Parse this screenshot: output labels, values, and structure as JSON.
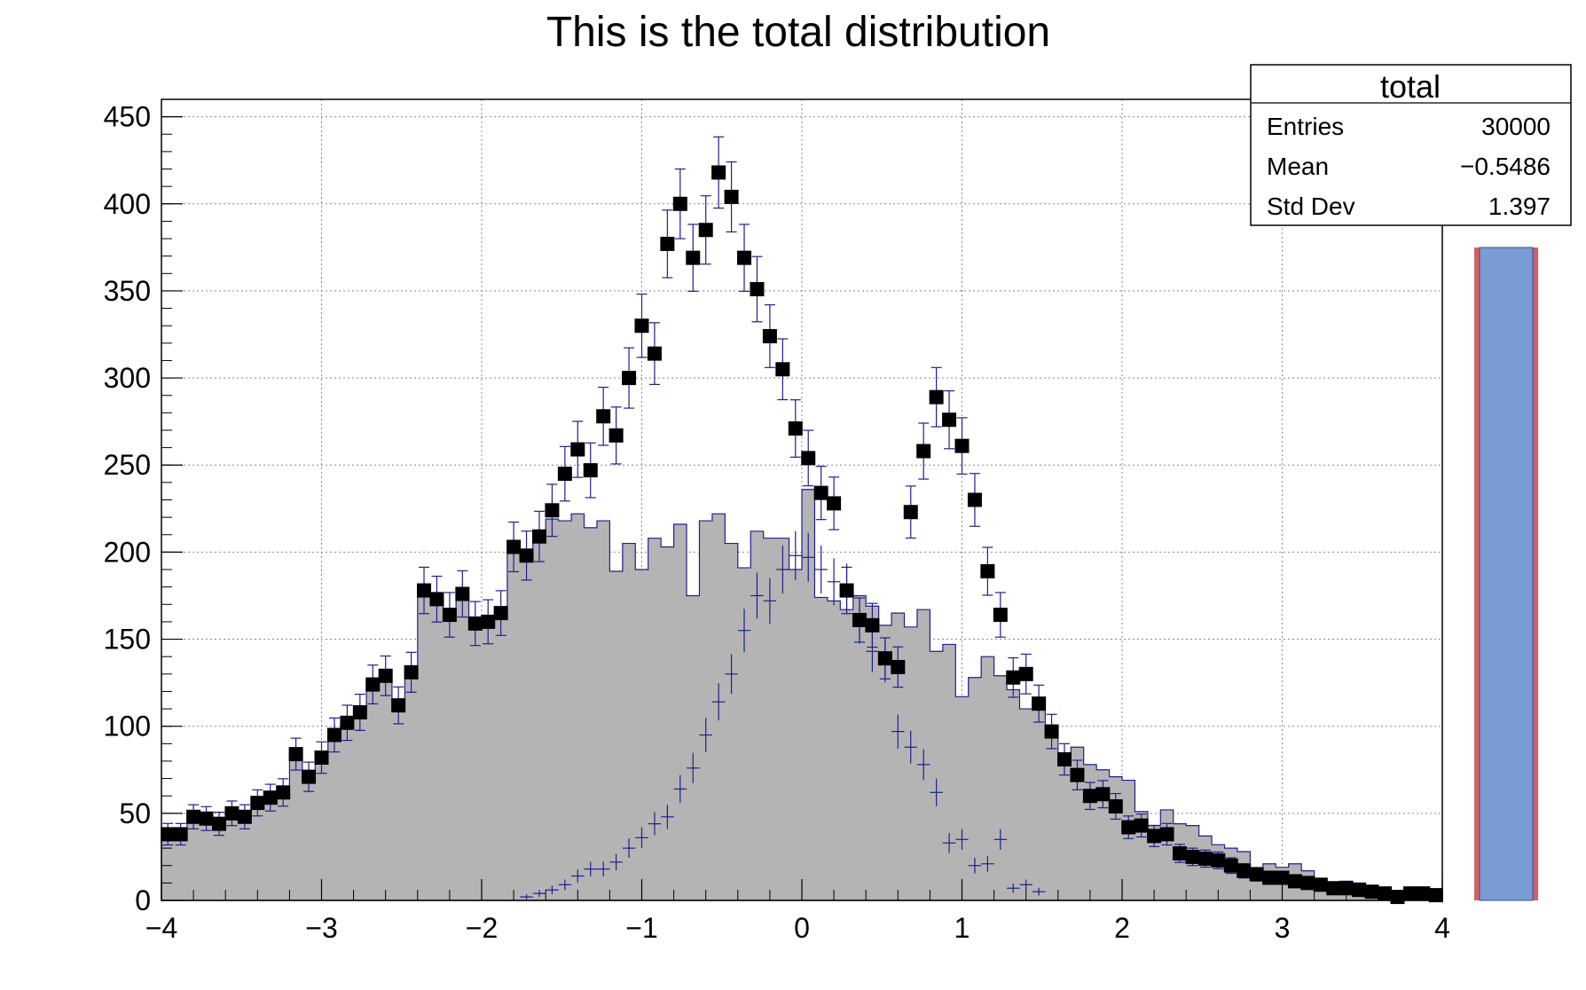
{
  "chart_data": {
    "type": "histogram",
    "title": "This is the total distribution",
    "xlim": [
      -4,
      4
    ],
    "ylim": [
      0,
      460
    ],
    "x_ticks": [
      "−4",
      "−3",
      "−2",
      "−1",
      "0",
      "1",
      "2",
      "3",
      "4"
    ],
    "y_ticks": [
      "0",
      "50",
      "100",
      "150",
      "200",
      "250",
      "300",
      "350",
      "400",
      "450"
    ],
    "grid": true,
    "bins": 100,
    "bin_range": [
      -4,
      4
    ],
    "colors": {
      "background_fill": "#b4b4b4",
      "line": "#1f1f8f",
      "markers": "#000000",
      "blue_box": "#7b9bd4",
      "red_border": "#d45f5f"
    },
    "series": [
      {
        "style": "filled-step",
        "values": [
          39,
          40,
          49,
          47,
          44,
          51,
          48,
          57,
          59,
          62,
          85,
          71,
          82,
          95,
          102,
          108,
          124,
          130,
          112,
          131,
          178,
          173,
          164,
          176,
          160,
          160,
          166,
          203,
          198,
          210,
          219,
          218,
          222,
          214,
          218,
          189,
          205,
          190,
          208,
          203,
          216,
          175,
          218,
          222,
          205,
          191,
          212,
          208,
          208,
          190,
          236,
          174,
          172,
          167,
          175,
          169,
          158,
          165,
          157,
          167,
          143,
          147,
          117,
          128,
          140,
          129,
          121,
          110,
          114,
          100,
          82,
          88,
          78,
          75,
          71,
          69,
          51,
          43,
          52,
          44,
          43,
          37,
          32,
          30,
          28,
          18,
          21,
          19,
          21,
          17,
          10,
          10,
          11,
          10,
          6,
          5,
          5,
          5,
          4,
          3
        ]
      },
      {
        "style": "crosses",
        "values": [
          0,
          0,
          0,
          0,
          0,
          0,
          0,
          0,
          0,
          0,
          0,
          0,
          0,
          0,
          0,
          0,
          0,
          0,
          0,
          0,
          0,
          0,
          0,
          0,
          0,
          0,
          0,
          0,
          2,
          4,
          6,
          9,
          14,
          18,
          18,
          22,
          30,
          36,
          44,
          48,
          64,
          76,
          95,
          114,
          130,
          155,
          175,
          172,
          190,
          198,
          197,
          190,
          183,
          180,
          160,
          143,
          137,
          97,
          88,
          78,
          62,
          33,
          35,
          20,
          21,
          35,
          7,
          9,
          5,
          0,
          0,
          0,
          0,
          0,
          0,
          0,
          0,
          0,
          0,
          0,
          0,
          0,
          0,
          0,
          0,
          0,
          0,
          0,
          0,
          0,
          0,
          0,
          0,
          0,
          0,
          0,
          0,
          0,
          0,
          0
        ],
        "partial_values": {
          "70": 0,
          "71": 0,
          "72": 0
        }
      },
      {
        "style": "markers-with-errors",
        "values": [
          38,
          38,
          48,
          47,
          44,
          50,
          48,
          56,
          59,
          62,
          84,
          71,
          82,
          95,
          102,
          108,
          124,
          129,
          112,
          131,
          178,
          173,
          164,
          176,
          159,
          160,
          165,
          203,
          198,
          209,
          224,
          245,
          259,
          247,
          278,
          267,
          300,
          330,
          314,
          377,
          400,
          369,
          385,
          418,
          404,
          369,
          351,
          324,
          305,
          271,
          254,
          234,
          228,
          178,
          161,
          158,
          139,
          134,
          223,
          258,
          289,
          276,
          261,
          230,
          189,
          164,
          128,
          130,
          113,
          97,
          81,
          72,
          60,
          61,
          54,
          42,
          43,
          37,
          38,
          27,
          25,
          24,
          23,
          20,
          17,
          15,
          13,
          13,
          11,
          10,
          9,
          7,
          7,
          6,
          5,
          4,
          2,
          4,
          4,
          3
        ]
      }
    ],
    "stats": {
      "title": "total",
      "rows": [
        {
          "label": "Entries",
          "value": "30000"
        },
        {
          "label": "Mean",
          "value": "−0.5486"
        },
        {
          "label": "Std Dev",
          "value": "1.397"
        }
      ]
    }
  }
}
